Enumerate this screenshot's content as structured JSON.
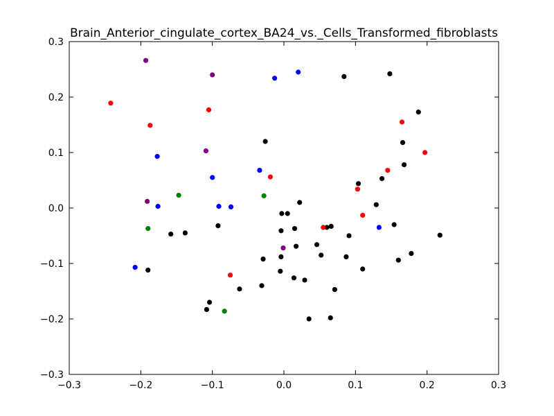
{
  "chart_data": {
    "type": "scatter",
    "title": "Brain_Anterior_cingulate_cortex_BA24_vs._Cells_Transformed_fibroblasts",
    "xlabel": "",
    "ylabel": "",
    "xlim": [
      -0.3,
      0.3
    ],
    "ylim": [
      -0.3,
      0.3
    ],
    "x_ticks": [
      -0.3,
      -0.2,
      -0.1,
      0.0,
      0.1,
      0.2,
      0.3
    ],
    "y_ticks": [
      -0.3,
      -0.2,
      -0.1,
      0.0,
      0.1,
      0.2,
      0.3
    ],
    "x_tick_labels": [
      "−0.3",
      "−0.2",
      "−0.1",
      "0.0",
      "0.1",
      "0.2",
      "0.3"
    ],
    "y_tick_labels": [
      "−0.3",
      "−0.2",
      "−0.1",
      "0.0",
      "0.1",
      "0.2",
      "0.3"
    ],
    "grid": false,
    "series": [
      {
        "color": "#000000",
        "points": [
          [
            0.084,
            0.237
          ],
          [
            0.148,
            0.242
          ],
          [
            0.188,
            0.173
          ],
          [
            0.166,
            0.118
          ],
          [
            0.168,
            0.078
          ],
          [
            -0.026,
            0.12
          ],
          [
            0.104,
            0.044
          ],
          [
            0.137,
            0.053
          ],
          [
            0.129,
            0.006
          ],
          [
            0.022,
            0.01
          ],
          [
            -0.003,
            -0.01
          ],
          [
            0.005,
            -0.01
          ],
          [
            -0.092,
            -0.032
          ],
          [
            0.154,
            -0.03
          ],
          [
            0.218,
            -0.049
          ],
          [
            -0.158,
            -0.047
          ],
          [
            -0.138,
            -0.045
          ],
          [
            -0.004,
            -0.041
          ],
          [
            0.015,
            -0.037
          ],
          [
            0.06,
            -0.035
          ],
          [
            0.066,
            -0.033
          ],
          [
            0.091,
            -0.05
          ],
          [
            0.046,
            -0.066
          ],
          [
            0.017,
            -0.069
          ],
          [
            -0.004,
            -0.088
          ],
          [
            -0.029,
            -0.092
          ],
          [
            0.052,
            -0.085
          ],
          [
            0.087,
            -0.088
          ],
          [
            0.16,
            -0.094
          ],
          [
            0.178,
            -0.082
          ],
          [
            -0.19,
            -0.112
          ],
          [
            -0.005,
            -0.114
          ],
          [
            0.11,
            -0.11
          ],
          [
            0.014,
            -0.126
          ],
          [
            0.029,
            -0.13
          ],
          [
            -0.031,
            -0.14
          ],
          [
            -0.062,
            -0.146
          ],
          [
            0.071,
            -0.147
          ],
          [
            -0.104,
            -0.17
          ],
          [
            -0.108,
            -0.183
          ],
          [
            0.035,
            -0.2
          ],
          [
            0.065,
            -0.198
          ]
        ]
      },
      {
        "color": "#ff0000",
        "points": [
          [
            -0.242,
            0.189
          ],
          [
            -0.187,
            0.149
          ],
          [
            -0.105,
            0.177
          ],
          [
            0.165,
            0.155
          ],
          [
            0.197,
            0.1
          ],
          [
            0.145,
            0.068
          ],
          [
            -0.019,
            0.056
          ],
          [
            0.103,
            0.034
          ],
          [
            0.11,
            -0.013
          ],
          [
            0.055,
            -0.035
          ],
          [
            -0.075,
            -0.121
          ]
        ]
      },
      {
        "color": "#0000ff",
        "points": [
          [
            -0.013,
            0.234
          ],
          [
            0.02,
            0.245
          ],
          [
            -0.177,
            0.093
          ],
          [
            -0.034,
            0.068
          ],
          [
            -0.1,
            0.055
          ],
          [
            -0.176,
            0.003
          ],
          [
            -0.091,
            0.003
          ],
          [
            -0.074,
            0.002
          ],
          [
            0.133,
            -0.035
          ],
          [
            -0.208,
            -0.107
          ]
        ]
      },
      {
        "color": "#800080",
        "points": [
          [
            -0.193,
            0.266
          ],
          [
            -0.1,
            0.24
          ],
          [
            -0.109,
            0.103
          ],
          [
            -0.191,
            0.012
          ],
          [
            -0.001,
            -0.072
          ]
        ]
      },
      {
        "color": "#008000",
        "points": [
          [
            -0.147,
            0.023
          ],
          [
            -0.028,
            0.022
          ],
          [
            -0.19,
            -0.037
          ],
          [
            -0.083,
            -0.186
          ]
        ]
      }
    ]
  }
}
